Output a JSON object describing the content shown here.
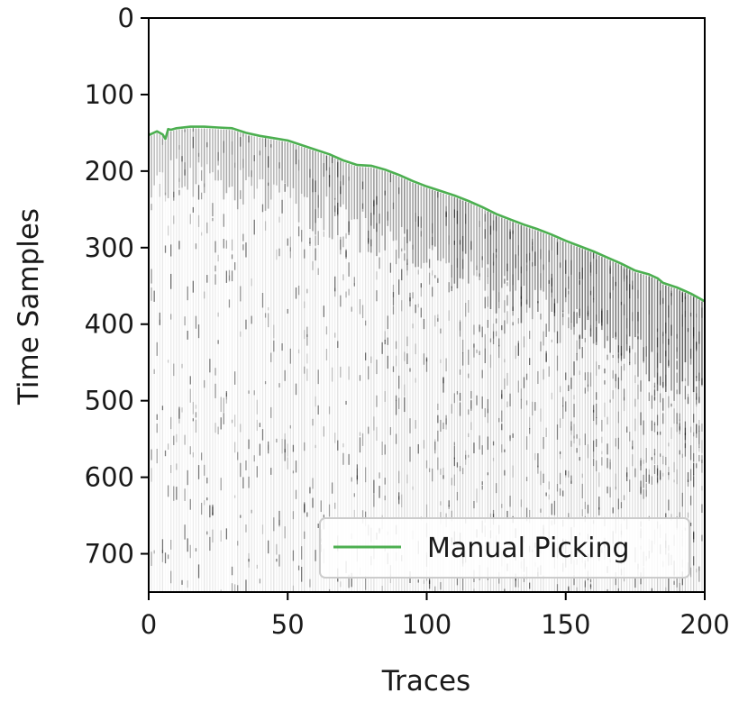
{
  "chart_data": {
    "type": "line",
    "title": "",
    "xlabel": "Traces",
    "ylabel": "Time Samples",
    "xlim": [
      0,
      200
    ],
    "ylim": [
      750,
      0
    ],
    "y_inverted": true,
    "background": "seismic gather image (grayscale wiggle amplitudes)",
    "xticks": [
      0,
      50,
      100,
      150,
      200
    ],
    "yticks": [
      0,
      100,
      200,
      300,
      400,
      500,
      600,
      700
    ],
    "legend": {
      "position": "lower-right"
    },
    "grid": false,
    "series": [
      {
        "name": "Manual Picking",
        "color": "#4caf50",
        "x": [
          0,
          3,
          5,
          6,
          7,
          8,
          10,
          15,
          20,
          25,
          30,
          35,
          40,
          45,
          50,
          55,
          60,
          65,
          70,
          75,
          80,
          85,
          90,
          95,
          100,
          105,
          110,
          115,
          120,
          125,
          130,
          135,
          140,
          145,
          150,
          155,
          160,
          165,
          170,
          175,
          180,
          183,
          185,
          190,
          195,
          200
        ],
        "y": [
          153,
          148,
          152,
          158,
          145,
          146,
          144,
          142,
          142,
          143,
          144,
          150,
          154,
          157,
          160,
          166,
          172,
          178,
          186,
          192,
          193,
          198,
          205,
          213,
          220,
          226,
          232,
          239,
          247,
          256,
          263,
          270,
          276,
          283,
          291,
          298,
          305,
          313,
          321,
          330,
          335,
          340,
          346,
          352,
          360,
          370
        ]
      }
    ]
  }
}
